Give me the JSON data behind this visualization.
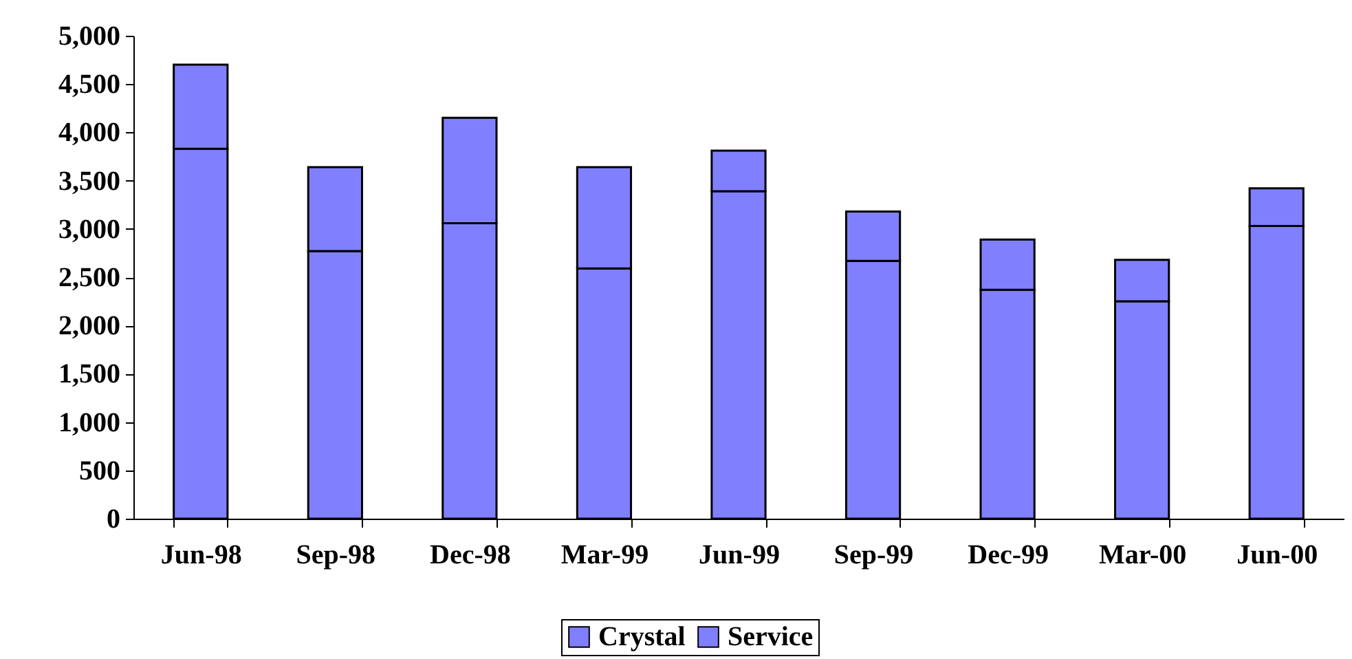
{
  "chart_data": {
    "type": "bar",
    "stacked": true,
    "categories": [
      "Jun-98",
      "Sep-98",
      "Dec-98",
      "Mar-99",
      "Jun-99",
      "Sep-99",
      "Dec-99",
      "Mar-00",
      "Jun-00"
    ],
    "series": [
      {
        "name": "Crystal",
        "color": "#8080ff",
        "values": [
          3830,
          2770,
          3060,
          2590,
          3390,
          2670,
          2370,
          2250,
          3030
        ]
      },
      {
        "name": "Service",
        "color": "#8080ff",
        "values": [
          870,
          870,
          1090,
          1050,
          420,
          510,
          520,
          430,
          390
        ]
      }
    ],
    "ylim": [
      0,
      5000
    ],
    "yticks": [
      {
        "value": 0,
        "label": "0"
      },
      {
        "value": 500,
        "label": "500"
      },
      {
        "value": 1000,
        "label": "1,000"
      },
      {
        "value": 1500,
        "label": "1,500"
      },
      {
        "value": 2000,
        "label": "2,000"
      },
      {
        "value": 2500,
        "label": "2,500"
      },
      {
        "value": 3000,
        "label": "3,000"
      },
      {
        "value": 3500,
        "label": "3,500"
      },
      {
        "value": 4000,
        "label": "4,000"
      },
      {
        "value": 4500,
        "label": "4,500"
      },
      {
        "value": 5000,
        "label": "5,000"
      }
    ],
    "legend": "bottom"
  }
}
